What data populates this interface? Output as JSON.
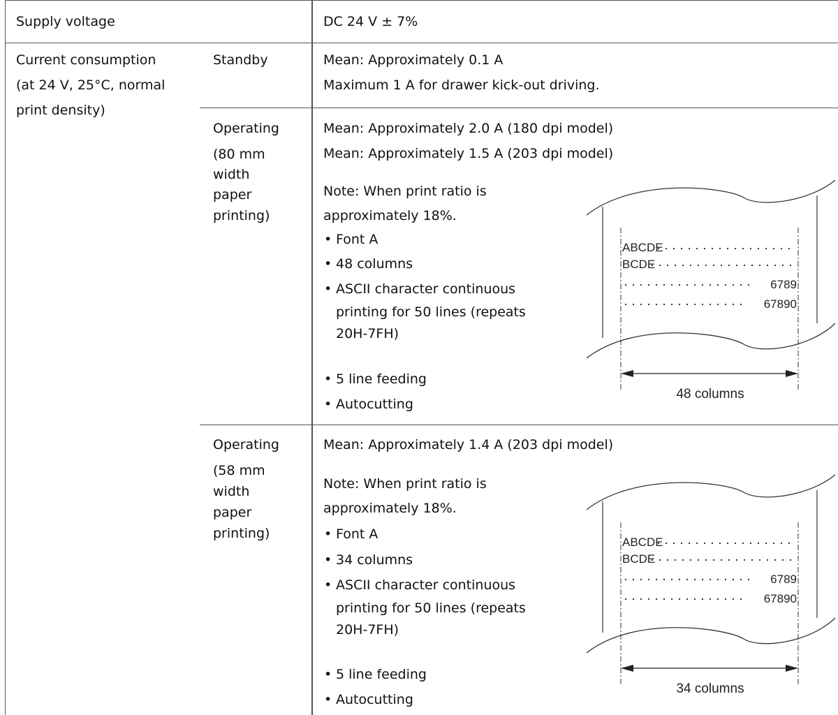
{
  "rows": {
    "supply": {
      "label": "Supply voltage",
      "value": "DC 24 V ± 7%"
    },
    "current": {
      "label_lines": [
        "Current consumption",
        "(at 24 V, 25°C, normal",
        "print density)"
      ],
      "standby": {
        "label": "Standby",
        "lines": [
          "Mean: Approximately 0.1 A",
          "Maximum 1 A for drawer kick-out driving."
        ]
      },
      "op80": {
        "label_lines": [
          "Operating",
          "(80 mm",
          "width",
          "paper",
          "printing)"
        ],
        "mean_lines": [
          "Mean: Approximately 2.0 A (180 dpi model)",
          "Mean: Approximately 1.5 A (203 dpi model)"
        ],
        "note_lines": [
          "Note: When print ratio is",
          "approximately 18%."
        ],
        "bullets": [
          "Font A",
          "48 columns",
          "ASCII character continuous",
          "5 line feeding",
          "Autocutting"
        ],
        "bullet_cont": [
          "printing for 50 lines (repeats",
          "20H-7FH)"
        ],
        "figure": {
          "lines": [
            "ABCDE",
            "BCDE",
            "6789",
            "67890"
          ],
          "caption": "48 columns"
        }
      },
      "op58": {
        "label_lines": [
          "Operating",
          "(58 mm",
          "width",
          "paper",
          "printing)"
        ],
        "mean_lines": [
          "Mean: Approximately 1.4 A (203 dpi model)"
        ],
        "note_lines": [
          "Note: When print ratio is",
          "approximately 18%."
        ],
        "bullets": [
          "Font A",
          "34 columns",
          "ASCII character continuous",
          "5 line feeding",
          "Autocutting"
        ],
        "bullet_cont": [
          "printing for 50 lines (repeats",
          "20H-7FH)"
        ],
        "figure": {
          "lines": [
            "ABCDE",
            "BCDE",
            "6789",
            "67890"
          ],
          "caption": "34 columns"
        }
      }
    }
  }
}
